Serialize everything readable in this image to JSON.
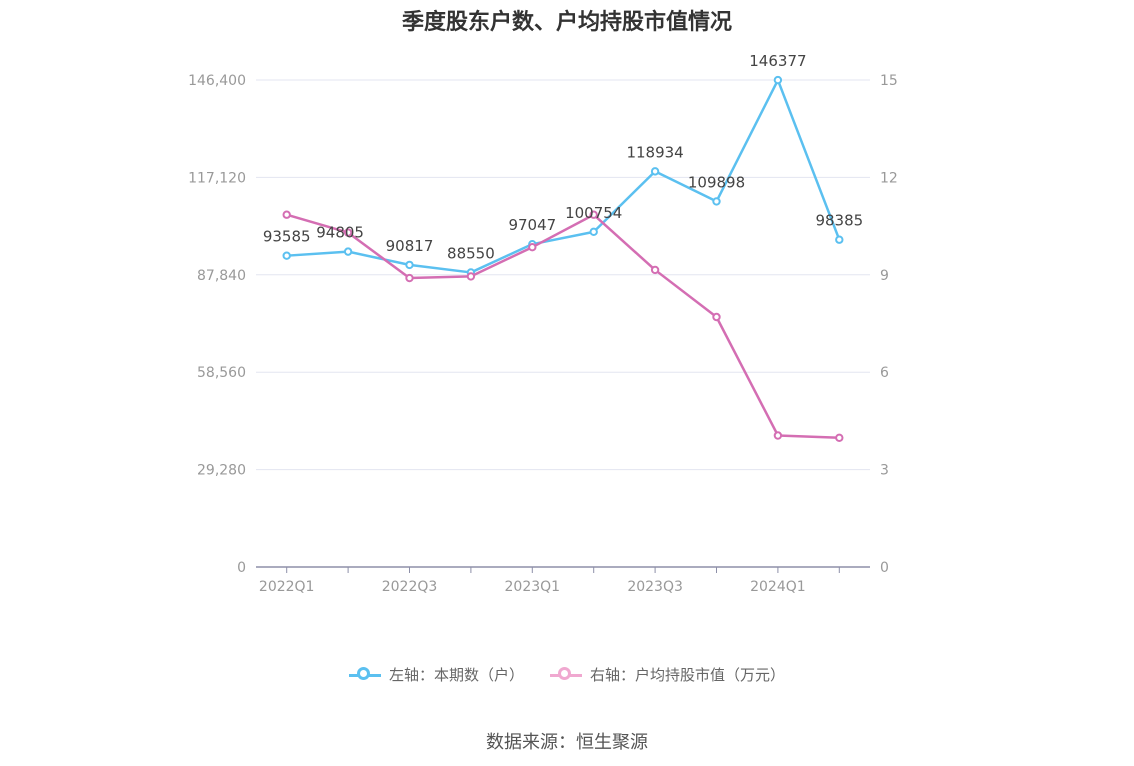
{
  "chart_data": {
    "type": "line",
    "title": "季度股东户数、户均持股市值情况",
    "categories": [
      "2022Q1",
      "2022Q2",
      "2022Q3",
      "2022Q4",
      "2023Q1",
      "2023Q2",
      "2023Q3",
      "2023Q4",
      "2024Q1",
      "2024Q2"
    ],
    "x_tick_labels": [
      "2022Q1",
      "2022Q3",
      "2023Q1",
      "2023Q3",
      "2024Q1"
    ],
    "left_axis": {
      "ylim": [
        0,
        146400
      ],
      "ticks": [
        "0",
        "29,280",
        "58,560",
        "87,840",
        "117,120",
        "146,400"
      ],
      "tick_values": [
        0,
        29280,
        58560,
        87840,
        117120,
        146400
      ]
    },
    "right_axis": {
      "ylim": [
        0,
        15
      ],
      "ticks": [
        "0",
        "3",
        "6",
        "9",
        "12",
        "15"
      ],
      "tick_values": [
        0,
        3,
        6,
        9,
        12,
        15
      ]
    },
    "series": [
      {
        "name": "左轴：本期数（户）",
        "axis": "left",
        "color": "#5bc0f0",
        "values": [
          93585,
          94805,
          90817,
          88550,
          97047,
          100754,
          118934,
          109898,
          146377,
          98385
        ],
        "labels": [
          "93585",
          "94805",
          "90817",
          "88550",
          "97047",
          "100754",
          "118934",
          "109898",
          "146377",
          "98385"
        ]
      },
      {
        "name": "右轴：户均持股市值（万元）",
        "axis": "right",
        "color": "#d46eb3",
        "values": [
          10.85,
          10.3,
          8.9,
          8.95,
          9.85,
          10.85,
          9.15,
          7.7,
          4.05,
          3.98
        ]
      }
    ],
    "grid": true,
    "legend_position": "bottom"
  },
  "source": "数据来源：恒生聚源"
}
